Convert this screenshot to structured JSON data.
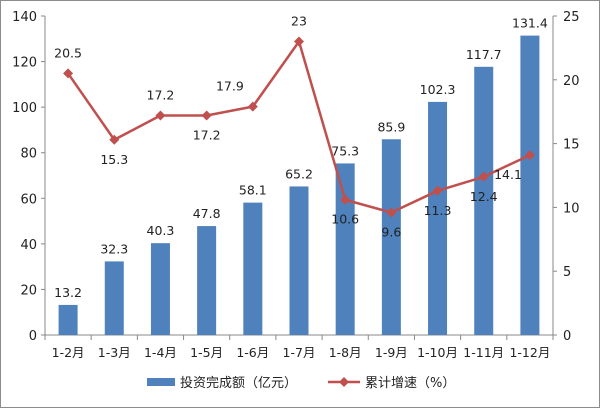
{
  "chart_data": {
    "type": "bar",
    "categories": [
      "1-2月",
      "1-3月",
      "1-4月",
      "1-5月",
      "1-6月",
      "1-7月",
      "1-8月",
      "1-9月",
      "1-10月",
      "1-11月",
      "1-12月"
    ],
    "series": [
      {
        "name": "投资完成额（亿元）",
        "type": "bar",
        "axis": "left",
        "color": "#4f81bd",
        "values": [
          13.2,
          32.3,
          40.3,
          47.8,
          58.1,
          65.2,
          75.3,
          85.9,
          102.3,
          117.7,
          131.4
        ],
        "labels": [
          "13.2",
          "32.3",
          "40.3",
          "47.8",
          "58.1",
          "65.2",
          "75.3",
          "85.9",
          "102.3",
          "117.7",
          "131.4"
        ]
      },
      {
        "name": "累计增速（%）",
        "type": "line",
        "axis": "right",
        "color": "#c0504d",
        "marker": "diamond",
        "values": [
          20.5,
          15.3,
          17.2,
          17.2,
          17.9,
          23,
          10.6,
          9.6,
          11.3,
          12.4,
          14.1
        ],
        "labels": [
          "20.5",
          "15.3",
          "17.2",
          "17.2",
          "17.9",
          "23",
          "10.6",
          "9.6",
          "11.3",
          "12.4",
          "14.1"
        ]
      }
    ],
    "y_left": {
      "range": [
        0,
        140
      ],
      "ticks": [
        0,
        20,
        40,
        60,
        80,
        100,
        120,
        140
      ]
    },
    "y_right": {
      "range": [
        0,
        25
      ],
      "ticks": [
        0,
        5,
        10,
        15,
        20,
        25
      ]
    },
    "grid": false,
    "legend": {
      "position": "bottom"
    }
  }
}
